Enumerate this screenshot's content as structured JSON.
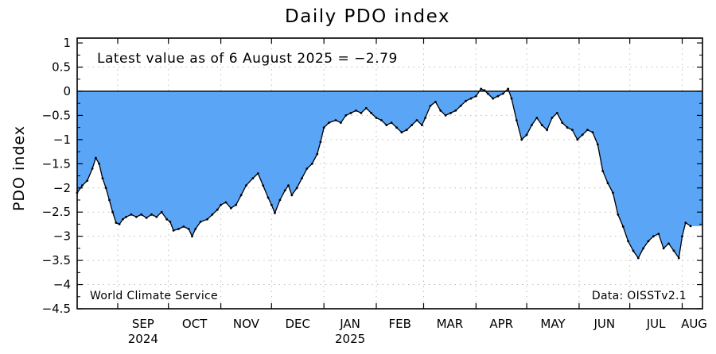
{
  "chart_data": {
    "type": "area",
    "title": "Daily PDO index",
    "ylabel": "PDO index",
    "xlabel": "",
    "annotation": "Latest value as of 6 August 2025 = −2.79",
    "footer_left": "World Climate Service",
    "footer_right": "Data: OISSTv2.1",
    "ylim": [
      -4.5,
      1.1
    ],
    "xlim": [
      "2024-08-08",
      "2025-08-13"
    ],
    "yticks": [
      1,
      0.5,
      0,
      -0.5,
      -1,
      -1.5,
      -2,
      -2.5,
      -3,
      -3.5,
      -4,
      -4.5
    ],
    "ytick_labels": [
      "1",
      "0.5",
      "0",
      "−0.5",
      "−1",
      "−1.5",
      "−2",
      "−2.5",
      "−3",
      "−3.5",
      "−4",
      "−4.5"
    ],
    "month_labels": [
      {
        "date": "2024-09-01",
        "label": "SEP",
        "year": "2024"
      },
      {
        "date": "2024-10-01",
        "label": "OCT",
        "year": ""
      },
      {
        "date": "2024-11-01",
        "label": "NOV",
        "year": ""
      },
      {
        "date": "2024-12-01",
        "label": "DEC",
        "year": ""
      },
      {
        "date": "2025-01-01",
        "label": "JAN",
        "year": "2025"
      },
      {
        "date": "2025-02-01",
        "label": "FEB",
        "year": ""
      },
      {
        "date": "2025-03-01",
        "label": "MAR",
        "year": ""
      },
      {
        "date": "2025-04-01",
        "label": "APR",
        "year": ""
      },
      {
        "date": "2025-05-01",
        "label": "MAY",
        "year": ""
      },
      {
        "date": "2025-06-01",
        "label": "JUN",
        "year": ""
      },
      {
        "date": "2025-07-01",
        "label": "JUL",
        "year": ""
      },
      {
        "date": "2025-08-01",
        "label": "AUG",
        "year": ""
      }
    ],
    "grid": true,
    "fill_color": "#5AA5F5",
    "line_color": "#000000",
    "series": [
      {
        "points": [
          [
            "2024-08-08",
            -2.1
          ],
          [
            "2024-08-11",
            -1.95
          ],
          [
            "2024-08-14",
            -1.85
          ],
          [
            "2024-08-17",
            -1.6
          ],
          [
            "2024-08-19",
            -1.38
          ],
          [
            "2024-08-21",
            -1.5
          ],
          [
            "2024-08-23",
            -1.8
          ],
          [
            "2024-08-25",
            -2.0
          ],
          [
            "2024-08-27",
            -2.25
          ],
          [
            "2024-08-29",
            -2.5
          ],
          [
            "2024-08-31",
            -2.72
          ],
          [
            "2024-09-02",
            -2.75
          ],
          [
            "2024-09-04",
            -2.65
          ],
          [
            "2024-09-06",
            -2.6
          ],
          [
            "2024-09-09",
            -2.55
          ],
          [
            "2024-09-12",
            -2.6
          ],
          [
            "2024-09-15",
            -2.55
          ],
          [
            "2024-09-18",
            -2.62
          ],
          [
            "2024-09-21",
            -2.55
          ],
          [
            "2024-09-24",
            -2.6
          ],
          [
            "2024-09-27",
            -2.5
          ],
          [
            "2024-09-30",
            -2.65
          ],
          [
            "2024-10-02",
            -2.7
          ],
          [
            "2024-10-04",
            -2.88
          ],
          [
            "2024-10-07",
            -2.85
          ],
          [
            "2024-10-10",
            -2.8
          ],
          [
            "2024-10-13",
            -2.85
          ],
          [
            "2024-10-15",
            -3.0
          ],
          [
            "2024-10-17",
            -2.85
          ],
          [
            "2024-10-20",
            -2.7
          ],
          [
            "2024-10-24",
            -2.65
          ],
          [
            "2024-10-27",
            -2.55
          ],
          [
            "2024-10-30",
            -2.45
          ],
          [
            "2024-11-01",
            -2.35
          ],
          [
            "2024-11-04",
            -2.3
          ],
          [
            "2024-11-07",
            -2.42
          ],
          [
            "2024-11-10",
            -2.35
          ],
          [
            "2024-11-13",
            -2.15
          ],
          [
            "2024-11-16",
            -1.95
          ],
          [
            "2024-11-20",
            -1.8
          ],
          [
            "2024-11-23",
            -1.7
          ],
          [
            "2024-11-26",
            -1.95
          ],
          [
            "2024-11-29",
            -2.2
          ],
          [
            "2024-12-01",
            -2.35
          ],
          [
            "2024-12-03",
            -2.52
          ],
          [
            "2024-12-06",
            -2.25
          ],
          [
            "2024-12-09",
            -2.05
          ],
          [
            "2024-12-11",
            -1.95
          ],
          [
            "2024-12-13",
            -2.15
          ],
          [
            "2024-12-16",
            -2.0
          ],
          [
            "2024-12-19",
            -1.8
          ],
          [
            "2024-12-22",
            -1.6
          ],
          [
            "2024-12-25",
            -1.5
          ],
          [
            "2024-12-28",
            -1.3
          ],
          [
            "2024-12-30",
            -1.05
          ],
          [
            "2025-01-01",
            -0.75
          ],
          [
            "2025-01-04",
            -0.65
          ],
          [
            "2025-01-08",
            -0.6
          ],
          [
            "2025-01-11",
            -0.65
          ],
          [
            "2025-01-14",
            -0.5
          ],
          [
            "2025-01-17",
            -0.45
          ],
          [
            "2025-01-20",
            -0.4
          ],
          [
            "2025-01-23",
            -0.45
          ],
          [
            "2025-01-26",
            -0.35
          ],
          [
            "2025-01-29",
            -0.45
          ],
          [
            "2025-02-01",
            -0.55
          ],
          [
            "2025-02-04",
            -0.6
          ],
          [
            "2025-02-07",
            -0.7
          ],
          [
            "2025-02-10",
            -0.65
          ],
          [
            "2025-02-13",
            -0.75
          ],
          [
            "2025-02-16",
            -0.85
          ],
          [
            "2025-02-19",
            -0.8
          ],
          [
            "2025-02-22",
            -0.7
          ],
          [
            "2025-02-25",
            -0.6
          ],
          [
            "2025-02-28",
            -0.7
          ],
          [
            "2025-03-02",
            -0.55
          ],
          [
            "2025-03-05",
            -0.3
          ],
          [
            "2025-03-08",
            -0.22
          ],
          [
            "2025-03-11",
            -0.4
          ],
          [
            "2025-03-14",
            -0.5
          ],
          [
            "2025-03-17",
            -0.45
          ],
          [
            "2025-03-20",
            -0.4
          ],
          [
            "2025-03-23",
            -0.3
          ],
          [
            "2025-03-26",
            -0.2
          ],
          [
            "2025-03-29",
            -0.15
          ],
          [
            "2025-04-01",
            -0.1
          ],
          [
            "2025-04-04",
            0.05
          ],
          [
            "2025-04-06",
            0.02
          ],
          [
            "2025-04-08",
            -0.05
          ],
          [
            "2025-04-11",
            -0.15
          ],
          [
            "2025-04-14",
            -0.1
          ],
          [
            "2025-04-17",
            -0.05
          ],
          [
            "2025-04-20",
            0.05
          ],
          [
            "2025-04-22",
            -0.15
          ],
          [
            "2025-04-25",
            -0.6
          ],
          [
            "2025-04-28",
            -1.0
          ],
          [
            "2025-05-01",
            -0.9
          ],
          [
            "2025-05-04",
            -0.7
          ],
          [
            "2025-05-07",
            -0.55
          ],
          [
            "2025-05-10",
            -0.7
          ],
          [
            "2025-05-13",
            -0.8
          ],
          [
            "2025-05-16",
            -0.55
          ],
          [
            "2025-05-19",
            -0.45
          ],
          [
            "2025-05-22",
            -0.65
          ],
          [
            "2025-05-25",
            -0.75
          ],
          [
            "2025-05-28",
            -0.8
          ],
          [
            "2025-05-31",
            -1.0
          ],
          [
            "2025-06-03",
            -0.9
          ],
          [
            "2025-06-06",
            -0.8
          ],
          [
            "2025-06-09",
            -0.85
          ],
          [
            "2025-06-12",
            -1.1
          ],
          [
            "2025-06-15",
            -1.65
          ],
          [
            "2025-06-18",
            -1.9
          ],
          [
            "2025-06-21",
            -2.1
          ],
          [
            "2025-06-24",
            -2.55
          ],
          [
            "2025-06-27",
            -2.8
          ],
          [
            "2025-06-30",
            -3.1
          ],
          [
            "2025-07-03",
            -3.3
          ],
          [
            "2025-07-06",
            -3.45
          ],
          [
            "2025-07-09",
            -3.25
          ],
          [
            "2025-07-12",
            -3.1
          ],
          [
            "2025-07-15",
            -3.0
          ],
          [
            "2025-07-18",
            -2.95
          ],
          [
            "2025-07-21",
            -3.25
          ],
          [
            "2025-07-24",
            -3.15
          ],
          [
            "2025-07-27",
            -3.3
          ],
          [
            "2025-07-30",
            -3.45
          ],
          [
            "2025-08-01",
            -3.0
          ],
          [
            "2025-08-03",
            -2.72
          ],
          [
            "2025-08-06",
            -2.79
          ]
        ]
      }
    ]
  }
}
